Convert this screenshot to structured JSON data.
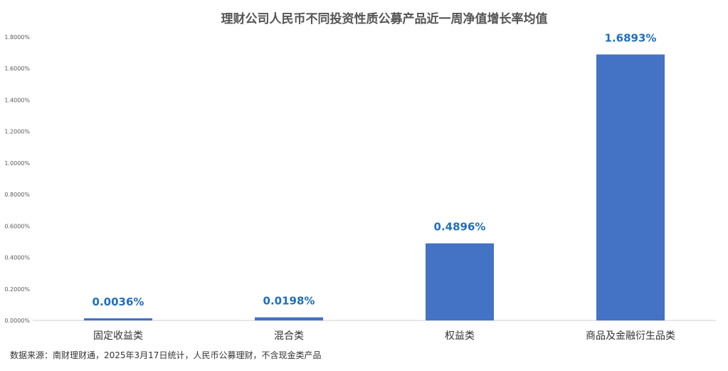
{
  "chart_data": {
    "type": "bar",
    "title": "理财公司人民币不同投资性质公募产品近一周净值增长率均值",
    "categories": [
      "固定收益类",
      "混合类",
      "权益类",
      "商品及金融衍生品类"
    ],
    "values": [
      0.0036,
      0.0198,
      0.4896,
      1.6893
    ],
    "data_labels": [
      "0.0036%",
      "0.0198%",
      "0.4896%",
      "1.6893%"
    ],
    "y_ticks": [
      "0.0000%",
      "0.2000%",
      "0.4000%",
      "0.6000%",
      "0.8000%",
      "1.0000%",
      "1.2000%",
      "1.4000%",
      "1.6000%",
      "1.8000%"
    ],
    "ylim": [
      0,
      1.8
    ],
    "xlabel": "",
    "ylabel": "",
    "grid": false,
    "bar_color": "#4472c4",
    "label_color": "#1f6fbf"
  },
  "source": "数据来源：南财理财通，2025年3月17日统计，人民币公募理财，不含现金类产品"
}
